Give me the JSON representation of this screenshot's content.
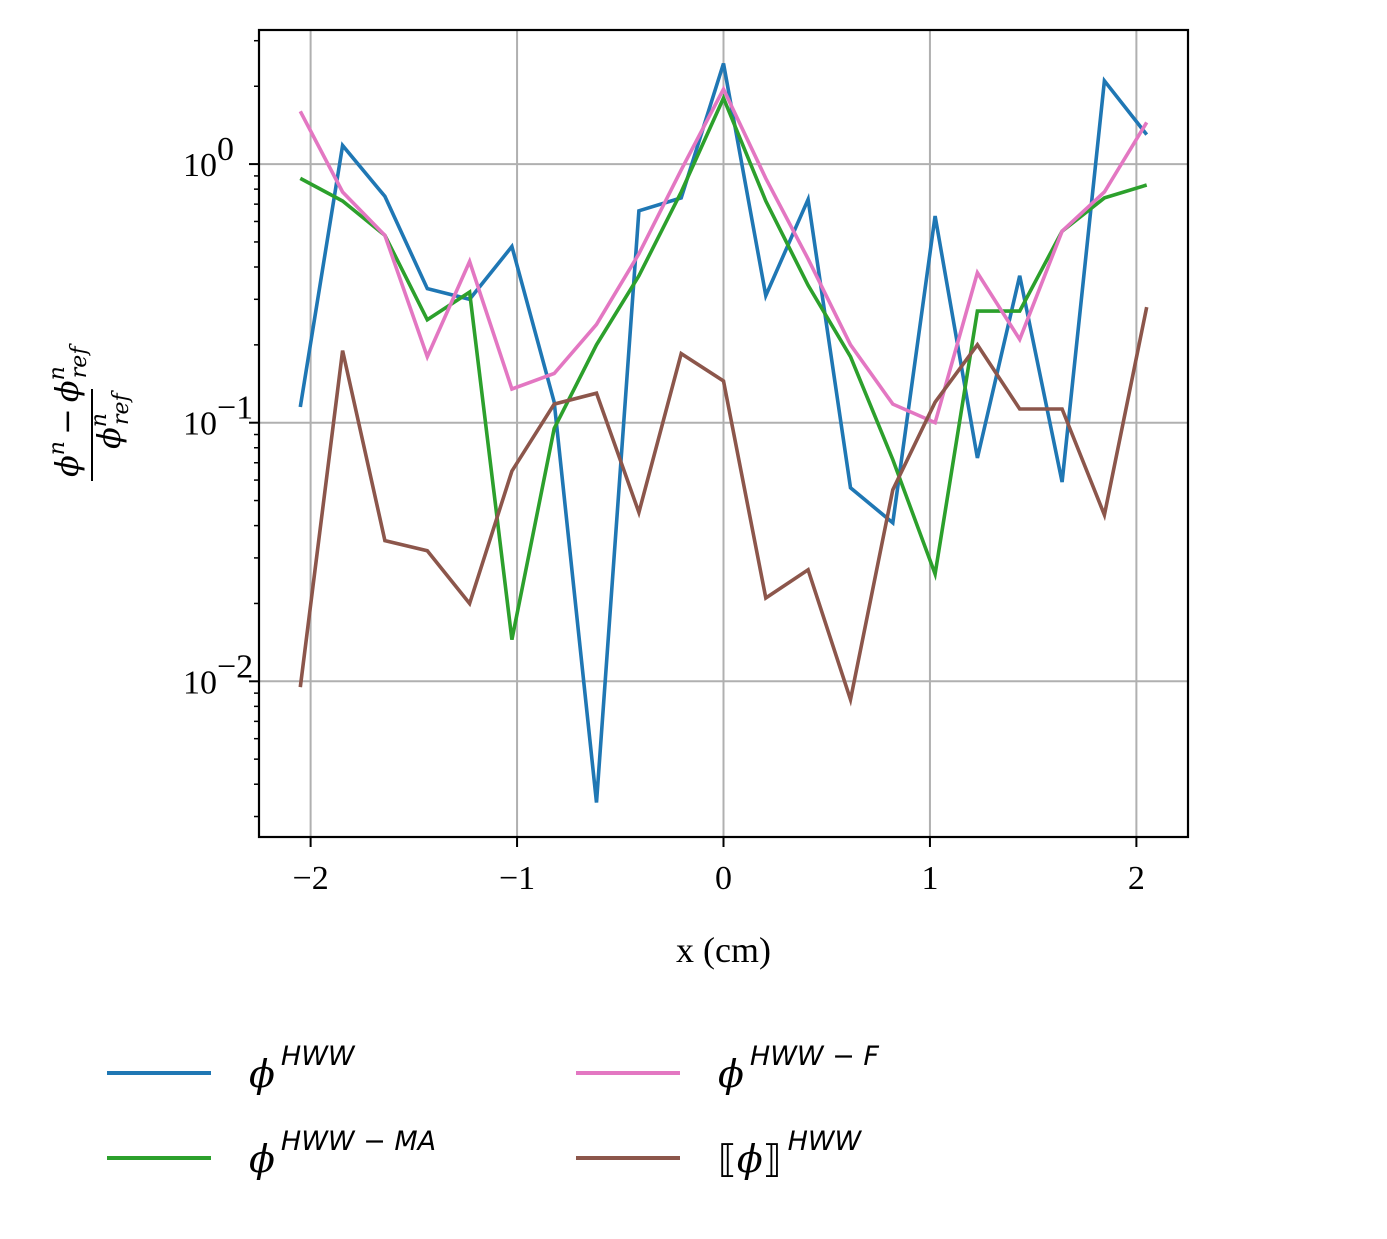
{
  "chart_data": {
    "type": "line",
    "xlabel": "x (cm)",
    "ylabel": "φⁿ − φⁿ_ref / φⁿ_ref",
    "ylabel_parts": {
      "num_main": "ϕ",
      "num_sup": "n",
      "minus": "−",
      "ref_main": "ϕ",
      "ref_sup": "n",
      "ref_sub": "ref"
    },
    "yscale": "log",
    "xlim": [
      -2.25,
      2.25
    ],
    "ylim": [
      0.0025,
      3.3
    ],
    "grid": true,
    "legend_position": "bottom",
    "x_ticks": [
      {
        "v": -2,
        "label": "−2"
      },
      {
        "v": -1,
        "label": "−1"
      },
      {
        "v": 0,
        "label": "0"
      },
      {
        "v": 1,
        "label": "1"
      },
      {
        "v": 2,
        "label": "2"
      }
    ],
    "y_ticks": [
      {
        "v": 1,
        "base": "10",
        "exp": "0"
      },
      {
        "v": 0.1,
        "base": "10",
        "exp": "−1"
      },
      {
        "v": 0.01,
        "base": "10",
        "exp": "−2"
      }
    ],
    "x": [
      -2.05,
      -1.845,
      -1.64,
      -1.435,
      -1.23,
      -1.025,
      -0.82,
      -0.615,
      -0.41,
      -0.205,
      0.0,
      0.205,
      0.41,
      0.615,
      0.82,
      1.025,
      1.23,
      1.435,
      1.64,
      1.845,
      2.05
    ],
    "series": [
      {
        "name": "ϕ^HWW",
        "label_main": "ϕ",
        "label_sup": "HWW",
        "label_pre": "",
        "label_post": "",
        "color": "#1f77b4",
        "values": [
          0.115,
          1.18,
          0.75,
          0.33,
          0.3,
          0.48,
          0.12,
          0.0034,
          0.66,
          0.74,
          2.45,
          0.31,
          0.73,
          0.056,
          0.041,
          0.63,
          0.073,
          0.37,
          0.059,
          2.1,
          1.3
        ]
      },
      {
        "name": "ϕ^HWW−MA",
        "label_main": "ϕ",
        "label_sup": "HWW − MA",
        "label_pre": "",
        "label_post": "",
        "color": "#2ca02c",
        "values": [
          0.88,
          0.72,
          0.53,
          0.25,
          0.32,
          0.0145,
          0.095,
          0.2,
          0.37,
          0.78,
          1.8,
          0.72,
          0.34,
          0.18,
          0.072,
          0.026,
          0.27,
          0.27,
          0.55,
          0.74,
          0.83
        ]
      },
      {
        "name": "ϕ^HWW−F",
        "label_main": "ϕ",
        "label_sup": "HWW − F",
        "label_pre": "",
        "label_post": "",
        "color": "#e377c2",
        "values": [
          1.6,
          0.78,
          0.53,
          0.18,
          0.42,
          0.135,
          0.155,
          0.24,
          0.45,
          0.95,
          1.95,
          0.88,
          0.43,
          0.2,
          0.118,
          0.1,
          0.38,
          0.21,
          0.55,
          0.78,
          1.45
        ]
      },
      {
        "name": "⟦ϕ⟧^HWW",
        "label_main": "ϕ",
        "label_sup": "HWW",
        "label_pre": "⟦",
        "label_post": "⟧",
        "color": "#8c564b",
        "values": [
          0.0095,
          0.19,
          0.035,
          0.032,
          0.02,
          0.065,
          0.118,
          0.13,
          0.045,
          0.185,
          0.145,
          0.021,
          0.027,
          0.0085,
          0.055,
          0.12,
          0.2,
          0.113,
          0.113,
          0.044,
          0.28
        ]
      }
    ]
  }
}
